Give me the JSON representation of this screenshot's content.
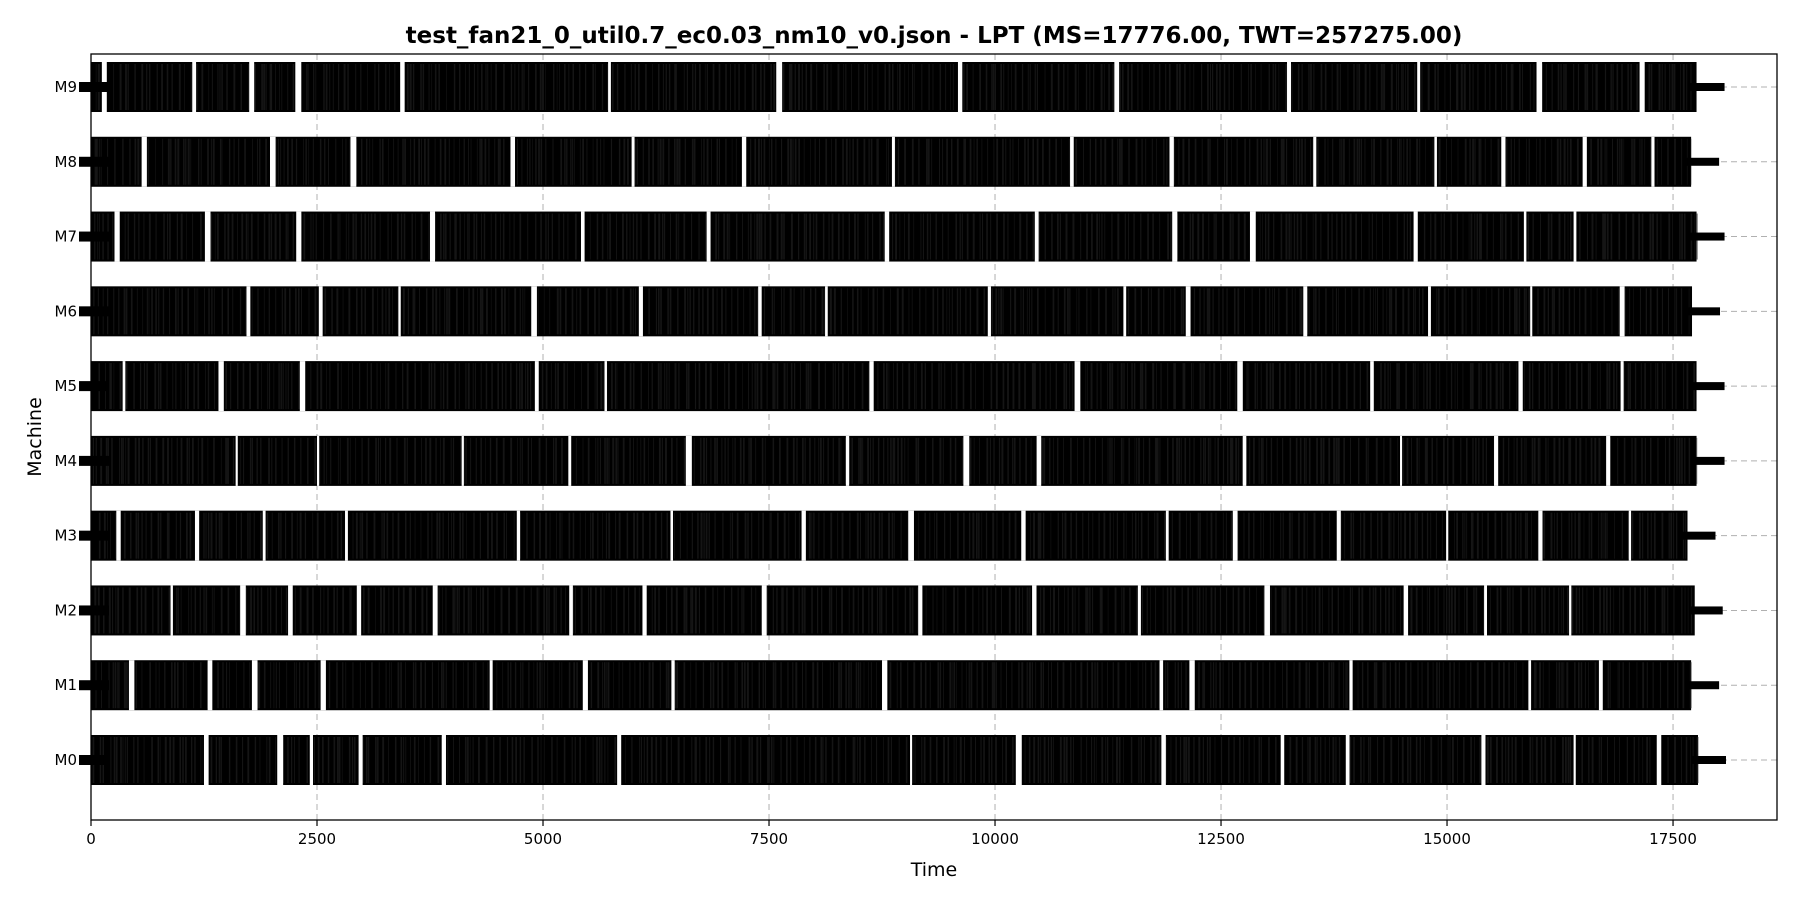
{
  "chart_data": {
    "type": "gantt",
    "title": "test_fan21_0_util0.7_ec0.03_nm10_v0.json - LPT (MS=17776.00, TWT=257275.00)",
    "xlabel": "Time",
    "ylabel": "Machine",
    "xlim": [
      0,
      18650
    ],
    "x_ticks": [
      0,
      2500,
      5000,
      7500,
      10000,
      12500,
      15000,
      17500
    ],
    "x_tick_labels": [
      "0",
      "2500",
      "5000",
      "7500",
      "10000",
      "12500",
      "15000",
      "17500"
    ],
    "grid": true,
    "grid_style": "dashed",
    "machines": [
      "M0",
      "M1",
      "M2",
      "M3",
      "M4",
      "M5",
      "M6",
      "M7",
      "M8",
      "M9"
    ],
    "makespan": 17776.0,
    "twt": 257275.0,
    "bar_color": "#000000",
    "gap_color": "#ffffff",
    "machine_busy": [
      {
        "machine": "M0",
        "end": 17776,
        "idle_gaps": [
          1250,
          2060,
          2420,
          2960,
          3880,
          5820,
          9060,
          10230,
          11840,
          13160,
          13880,
          15380,
          16400,
          17320
        ]
      },
      {
        "machine": "M1",
        "end": 17700,
        "idle_gaps": [
          420,
          1290,
          1780,
          2540,
          4410,
          5440,
          6420,
          8750,
          11820,
          12150,
          13920,
          15900,
          16680
        ]
      },
      {
        "machine": "M2",
        "end": 17740,
        "idle_gaps": [
          880,
          1650,
          2180,
          2940,
          3780,
          5290,
          6100,
          7420,
          9150,
          10410,
          11580,
          12980,
          14520,
          15410,
          16350
        ]
      },
      {
        "machine": "M3",
        "end": 17660,
        "idle_gaps": [
          280,
          1150,
          1900,
          2810,
          4710,
          6410,
          7860,
          9040,
          10290,
          11890,
          12630,
          13780,
          14990,
          16010,
          17010
        ]
      },
      {
        "machine": "M4",
        "end": 17760,
        "idle_gaps": [
          1600,
          2500,
          4100,
          5280,
          6580,
          8350,
          9650,
          10460,
          12740,
          14480,
          15520,
          16760
        ]
      },
      {
        "machine": "M5",
        "end": 17760,
        "idle_gaps": [
          350,
          1410,
          2310,
          4910,
          5680,
          8610,
          10880,
          12680,
          14150,
          15790,
          16920
        ]
      },
      {
        "machine": "M6",
        "end": 17710,
        "idle_gaps": [
          1720,
          2520,
          3400,
          4870,
          6060,
          7380,
          8120,
          9920,
          11420,
          12110,
          13410,
          14790,
          15920,
          16910
        ]
      },
      {
        "machine": "M7",
        "end": 17760,
        "idle_gaps": [
          260,
          1260,
          2270,
          3750,
          5420,
          6810,
          8780,
          10440,
          11960,
          12820,
          14630,
          15850,
          16400
        ]
      },
      {
        "machine": "M8",
        "end": 17700,
        "idle_gaps": [
          560,
          1980,
          2870,
          4640,
          5980,
          7200,
          8860,
          10830,
          11930,
          13520,
          14860,
          15600,
          16500,
          17260
        ]
      },
      {
        "machine": "M9",
        "end": 17760,
        "idle_gaps": [
          120,
          1120,
          1750,
          2260,
          3420,
          5720,
          7580,
          9590,
          11320,
          13230,
          14670,
          15990,
          17130
        ]
      }
    ]
  }
}
